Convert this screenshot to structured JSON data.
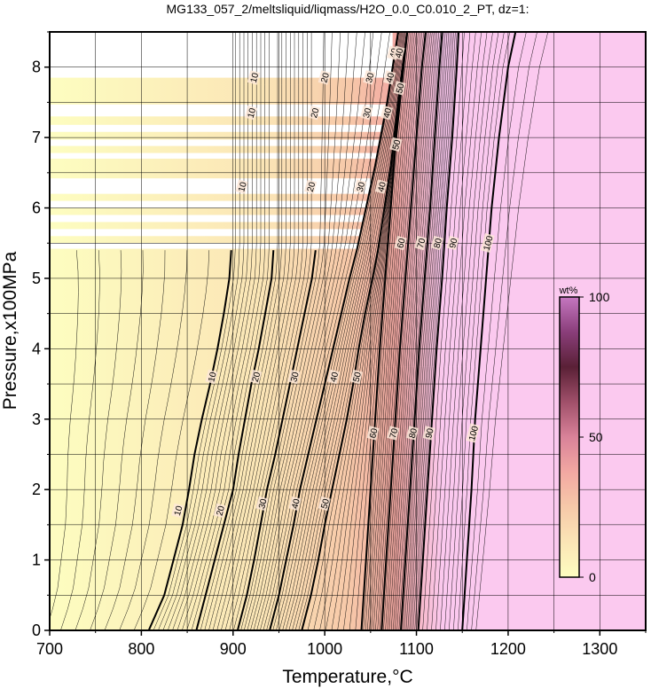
{
  "chart_data": {
    "type": "heatmap",
    "title": "MG133_057_2/meltsliquid/liqmass/H2O_0.0_C0.010_2_PT, dz=1:",
    "xlabel": "Temperature,°C",
    "ylabel": "Pressure,x100MPa",
    "xlim": [
      700,
      1350
    ],
    "ylim": [
      0,
      8.5
    ],
    "xticks": [
      "700",
      "800",
      "900",
      "1000",
      "1100",
      "1200",
      "1300"
    ],
    "yticks": [
      "0",
      "1",
      "2",
      "3",
      "4",
      "5",
      "6",
      "7",
      "8"
    ],
    "grid": true,
    "colorbar": {
      "unit": "wt%",
      "min": 0,
      "max": 100,
      "ticks": [
        "0",
        "50",
        "100"
      ],
      "colors": [
        "#fdfdc0",
        "#fbe5b6",
        "#f7c9a9",
        "#f2a8a2",
        "#d98299",
        "#a0506a",
        "#5a2036",
        "#8a3e7a",
        "#c577c0",
        "#fbc9ef",
        "#ffffff"
      ]
    },
    "contour_lines": [
      {
        "level": 10,
        "points": [
          [
            808,
            0
          ],
          [
            825,
            0.5
          ],
          [
            835,
            1.0
          ],
          [
            845,
            1.5
          ],
          [
            852,
            2.0
          ],
          [
            858,
            2.5
          ],
          [
            866,
            3.0
          ],
          [
            875,
            3.5
          ],
          [
            883,
            4.0
          ],
          [
            890,
            4.5
          ],
          [
            896,
            5.0
          ],
          [
            898,
            5.4
          ]
        ]
      },
      {
        "level": 20,
        "points": [
          [
            860,
            0
          ],
          [
            870,
            0.5
          ],
          [
            880,
            1.0
          ],
          [
            890,
            1.5
          ],
          [
            900,
            2.0
          ],
          [
            906,
            2.5
          ],
          [
            913,
            3.0
          ],
          [
            920,
            3.5
          ],
          [
            928,
            4.0
          ],
          [
            935,
            4.5
          ],
          [
            942,
            5.0
          ],
          [
            944,
            5.4
          ]
        ]
      },
      {
        "level": 30,
        "points": [
          [
            905,
            0
          ],
          [
            915,
            0.5
          ],
          [
            923,
            1.0
          ],
          [
            930,
            1.5
          ],
          [
            937,
            2.0
          ],
          [
            946,
            2.5
          ],
          [
            954,
            3.0
          ],
          [
            962,
            3.5
          ],
          [
            970,
            4.0
          ],
          [
            978,
            4.5
          ],
          [
            986,
            5.0
          ],
          [
            990,
            5.4
          ]
        ]
      },
      {
        "level": 40,
        "points": [
          [
            940,
            0
          ],
          [
            950,
            0.5
          ],
          [
            958,
            1.0
          ],
          [
            966,
            1.5
          ],
          [
            973,
            2.0
          ],
          [
            982,
            2.5
          ],
          [
            991,
            3.0
          ],
          [
            1000,
            3.5
          ],
          [
            1009,
            4.0
          ],
          [
            1018,
            4.5
          ],
          [
            1027,
            5.0
          ],
          [
            1035,
            5.4
          ],
          [
            1045,
            6.0
          ],
          [
            1055,
            6.6
          ],
          [
            1068,
            7.5
          ],
          [
            1080,
            8.5
          ]
        ]
      },
      {
        "level": 50,
        "points": [
          [
            975,
            0
          ],
          [
            985,
            0.5
          ],
          [
            993,
            1.0
          ],
          [
            1000,
            1.5
          ],
          [
            1008,
            2.0
          ],
          [
            1016,
            2.5
          ],
          [
            1024,
            3.0
          ],
          [
            1031,
            3.5
          ],
          [
            1037,
            4.0
          ],
          [
            1044,
            4.5
          ],
          [
            1052,
            5.0
          ],
          [
            1058,
            5.4
          ],
          [
            1065,
            6.0
          ],
          [
            1072,
            6.6
          ],
          [
            1080,
            7.5
          ],
          [
            1090,
            8.5
          ]
        ]
      },
      {
        "level": 60,
        "points": [
          [
            1040,
            0
          ],
          [
            1045,
            1.0
          ],
          [
            1050,
            2.0
          ],
          [
            1055,
            3.0
          ],
          [
            1060,
            4.0
          ],
          [
            1066,
            5.0
          ],
          [
            1072,
            6.0
          ],
          [
            1078,
            7.0
          ],
          [
            1086,
            8.0
          ],
          [
            1090,
            8.5
          ]
        ]
      },
      {
        "level": 70,
        "points": [
          [
            1062,
            0
          ],
          [
            1067,
            1.0
          ],
          [
            1072,
            2.0
          ],
          [
            1077,
            3.0
          ],
          [
            1082,
            4.0
          ],
          [
            1088,
            5.0
          ],
          [
            1094,
            6.0
          ],
          [
            1100,
            7.0
          ],
          [
            1106,
            8.0
          ],
          [
            1110,
            8.5
          ]
        ]
      },
      {
        "level": 80,
        "points": [
          [
            1083,
            0
          ],
          [
            1088,
            1.0
          ],
          [
            1093,
            2.0
          ],
          [
            1098,
            3.0
          ],
          [
            1103,
            4.0
          ],
          [
            1109,
            5.0
          ],
          [
            1115,
            6.0
          ],
          [
            1120,
            7.0
          ],
          [
            1125,
            8.0
          ],
          [
            1128,
            8.5
          ]
        ]
      },
      {
        "level": 90,
        "points": [
          [
            1102,
            0
          ],
          [
            1107,
            1.0
          ],
          [
            1112,
            2.0
          ],
          [
            1117,
            3.0
          ],
          [
            1122,
            4.0
          ],
          [
            1128,
            5.0
          ],
          [
            1133,
            6.0
          ],
          [
            1139,
            7.0
          ],
          [
            1144,
            8.0
          ],
          [
            1146,
            8.5
          ]
        ]
      },
      {
        "level": 100,
        "points": [
          [
            1150,
            0
          ],
          [
            1155,
            1.0
          ],
          [
            1160,
            2.0
          ],
          [
            1164,
            3.0
          ],
          [
            1170,
            4.0
          ],
          [
            1176,
            5.0
          ],
          [
            1182,
            6.0
          ],
          [
            1190,
            7.0
          ],
          [
            1200,
            8.0
          ],
          [
            1208,
            8.5
          ]
        ]
      }
    ],
    "inline_contour_labels": [
      {
        "text": "10",
        "x": 840,
        "y": 1.7
      },
      {
        "text": "20",
        "x": 886,
        "y": 1.7
      },
      {
        "text": "30",
        "x": 932,
        "y": 1.8
      },
      {
        "text": "40",
        "x": 968,
        "y": 1.8
      },
      {
        "text": "50",
        "x": 1000,
        "y": 1.8
      },
      {
        "text": "60",
        "x": 1053,
        "y": 2.8
      },
      {
        "text": "70",
        "x": 1075,
        "y": 2.8
      },
      {
        "text": "80",
        "x": 1096,
        "y": 2.8
      },
      {
        "text": "90",
        "x": 1114,
        "y": 2.8
      },
      {
        "text": "100",
        "x": 1162,
        "y": 2.8
      },
      {
        "text": "10",
        "x": 877,
        "y": 3.6
      },
      {
        "text": "20",
        "x": 925,
        "y": 3.6
      },
      {
        "text": "30",
        "x": 967,
        "y": 3.6
      },
      {
        "text": "40",
        "x": 1010,
        "y": 3.6
      },
      {
        "text": "50",
        "x": 1035,
        "y": 3.6
      },
      {
        "text": "60",
        "x": 1083,
        "y": 5.5
      },
      {
        "text": "70",
        "x": 1105,
        "y": 5.5
      },
      {
        "text": "80",
        "x": 1123,
        "y": 5.5
      },
      {
        "text": "90",
        "x": 1140,
        "y": 5.5
      },
      {
        "text": "100",
        "x": 1178,
        "y": 5.5
      },
      {
        "text": "50",
        "x": 1078,
        "y": 6.9
      },
      {
        "text": "50",
        "x": 1082,
        "y": 7.7
      },
      {
        "text": "40",
        "x": 1075,
        "y": 8.2
      },
      {
        "text": "40",
        "x": 1081,
        "y": 8.2
      },
      {
        "text": "10",
        "x": 910,
        "y": 6.3
      },
      {
        "text": "20",
        "x": 985,
        "y": 6.3
      },
      {
        "text": "30",
        "x": 1039,
        "y": 6.3
      },
      {
        "text": "40",
        "x": 1062,
        "y": 6.3
      },
      {
        "text": "10",
        "x": 920,
        "y": 7.35
      },
      {
        "text": "20",
        "x": 989,
        "y": 7.35
      },
      {
        "text": "30",
        "x": 1046,
        "y": 7.35
      },
      {
        "text": "40",
        "x": 1068,
        "y": 7.35
      },
      {
        "text": "10",
        "x": 923,
        "y": 7.85
      },
      {
        "text": "20",
        "x": 1000,
        "y": 7.85
      },
      {
        "text": "30",
        "x": 1049,
        "y": 7.85
      },
      {
        "text": "40",
        "x": 1071,
        "y": 7.85
      }
    ],
    "unstable_bands": [
      [
        5.42,
        5.5
      ],
      [
        5.6,
        5.7
      ],
      [
        5.8,
        5.9
      ],
      [
        6.0,
        6.1
      ],
      [
        6.2,
        6.42
      ],
      [
        6.7,
        6.78
      ],
      [
        6.88,
        6.97
      ],
      [
        7.08,
        7.18
      ],
      [
        7.3,
        7.47
      ],
      [
        7.85,
        8.0
      ]
    ]
  }
}
